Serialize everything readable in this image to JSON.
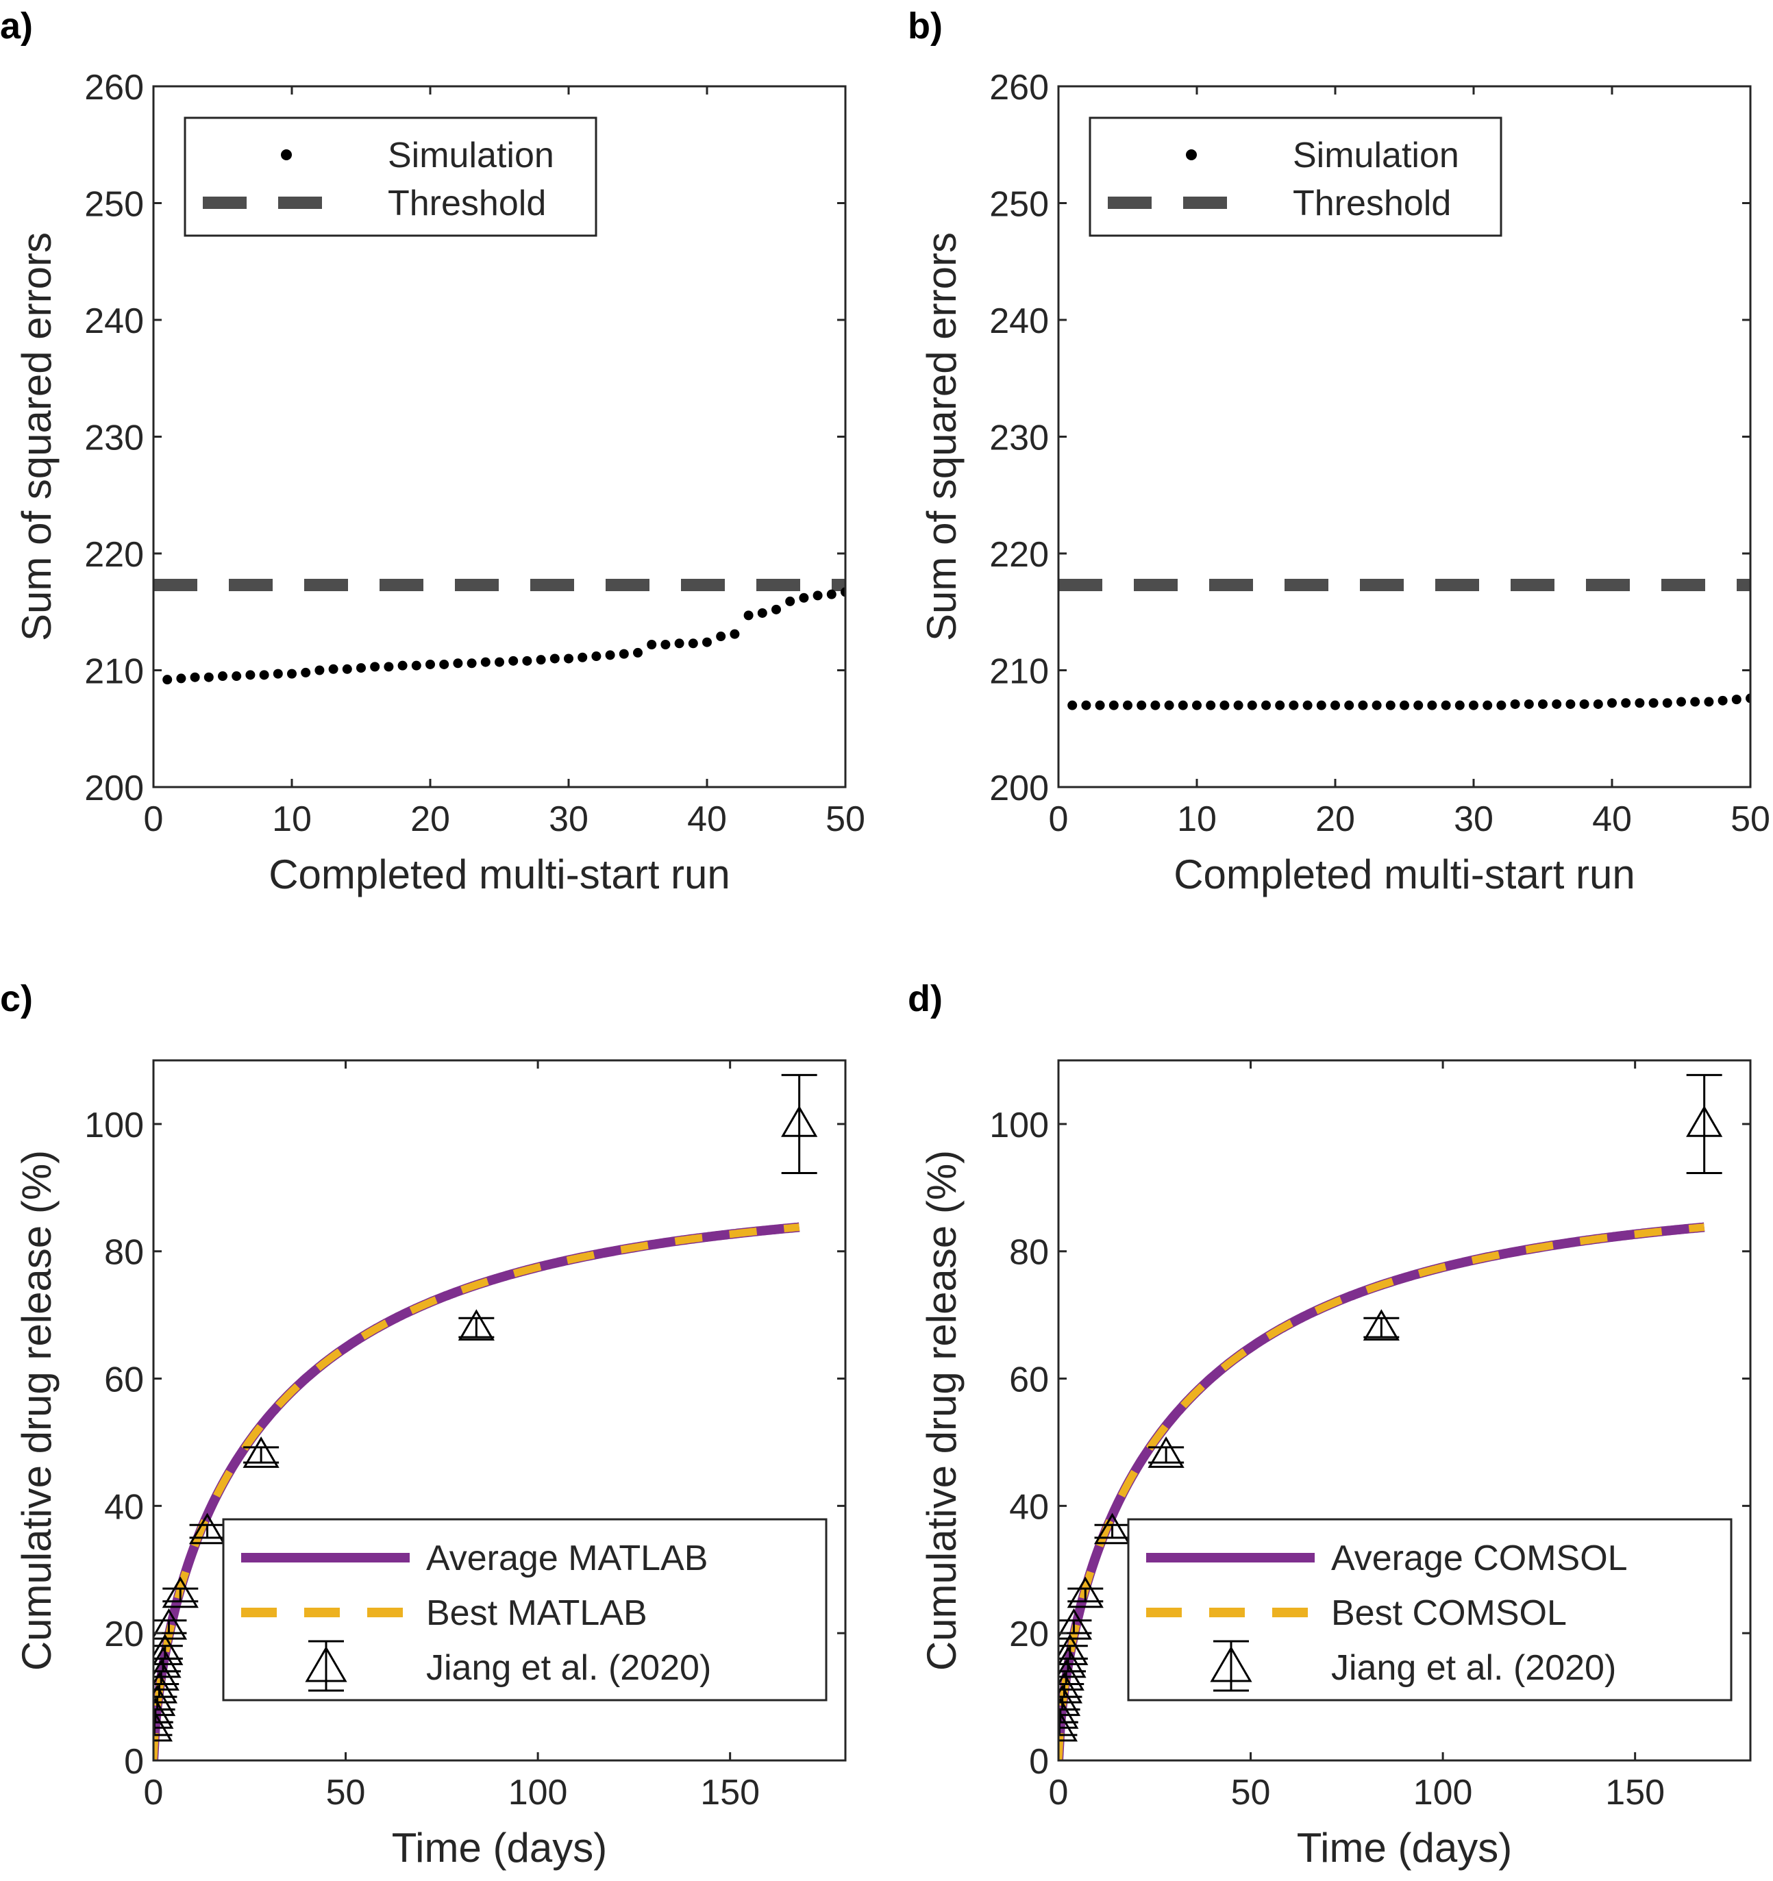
{
  "chart_data": [
    {
      "panel": "a)",
      "type": "scatter",
      "xlabel": "Completed multi-start run",
      "ylabel": "Sum of squared errors",
      "xlim": [
        0,
        50
      ],
      "ylim": [
        200,
        260
      ],
      "xticks": [
        0,
        10,
        20,
        30,
        40,
        50
      ],
      "yticks": [
        200,
        210,
        220,
        230,
        240,
        250,
        260
      ],
      "legend": {
        "placement": "top-left",
        "entries": [
          "Simulation",
          "Threshold"
        ]
      },
      "series": [
        {
          "name": "Simulation",
          "style": "dots",
          "color": "#000000",
          "x": [
            1,
            2,
            3,
            4,
            5,
            6,
            7,
            8,
            9,
            10,
            11,
            12,
            13,
            14,
            15,
            16,
            17,
            18,
            19,
            20,
            21,
            22,
            23,
            24,
            25,
            26,
            27,
            28,
            29,
            30,
            31,
            32,
            33,
            34,
            35,
            36,
            37,
            38,
            39,
            40,
            41,
            42,
            43,
            44,
            45,
            46,
            47,
            48,
            49,
            50
          ],
          "y": [
            209.2,
            209.3,
            209.4,
            209.4,
            209.5,
            209.5,
            209.6,
            209.6,
            209.7,
            209.7,
            209.8,
            210.0,
            210.1,
            210.1,
            210.2,
            210.3,
            210.3,
            210.4,
            210.4,
            210.5,
            210.5,
            210.6,
            210.6,
            210.7,
            210.7,
            210.8,
            210.8,
            210.9,
            211.0,
            211.0,
            211.1,
            211.2,
            211.3,
            211.4,
            211.5,
            212.2,
            212.2,
            212.3,
            212.3,
            212.4,
            212.9,
            213.1,
            214.7,
            214.9,
            215.2,
            215.9,
            216.2,
            216.4,
            216.5,
            216.7
          ]
        },
        {
          "name": "Threshold",
          "style": "dashed",
          "color": "#4d4d4d",
          "y": 217.3
        }
      ]
    },
    {
      "panel": "b)",
      "type": "scatter",
      "xlabel": "Completed multi-start run",
      "ylabel": "Sum of squared errors",
      "xlim": [
        0,
        50
      ],
      "ylim": [
        200,
        260
      ],
      "xticks": [
        0,
        10,
        20,
        30,
        40,
        50
      ],
      "yticks": [
        200,
        210,
        220,
        230,
        240,
        250,
        260
      ],
      "legend": {
        "placement": "top-left",
        "entries": [
          "Simulation",
          "Threshold"
        ]
      },
      "series": [
        {
          "name": "Simulation",
          "style": "dots",
          "color": "#000000",
          "x": [
            1,
            2,
            3,
            4,
            5,
            6,
            7,
            8,
            9,
            10,
            11,
            12,
            13,
            14,
            15,
            16,
            17,
            18,
            19,
            20,
            21,
            22,
            23,
            24,
            25,
            26,
            27,
            28,
            29,
            30,
            31,
            32,
            33,
            34,
            35,
            36,
            37,
            38,
            39,
            40,
            41,
            42,
            43,
            44,
            45,
            46,
            47,
            48,
            49,
            50
          ],
          "y": [
            207.0,
            207.0,
            207.0,
            207.0,
            207.0,
            207.0,
            207.0,
            207.0,
            207.0,
            207.0,
            207.0,
            207.0,
            207.0,
            207.0,
            207.0,
            207.0,
            207.0,
            207.0,
            207.0,
            207.0,
            207.0,
            207.0,
            207.0,
            207.0,
            207.0,
            207.0,
            207.0,
            207.0,
            207.0,
            207.0,
            207.0,
            207.0,
            207.1,
            207.1,
            207.1,
            207.1,
            207.1,
            207.1,
            207.1,
            207.2,
            207.2,
            207.2,
            207.2,
            207.2,
            207.3,
            207.3,
            207.3,
            207.4,
            207.5,
            207.6
          ]
        },
        {
          "name": "Threshold",
          "style": "dashed",
          "color": "#4d4d4d",
          "y": 217.3
        }
      ]
    },
    {
      "panel": "c)",
      "type": "line",
      "xlabel": "Time (days)",
      "ylabel": "Cumulative drug release (%)",
      "xlim": [
        0,
        180
      ],
      "ylim": [
        0,
        110
      ],
      "xticks": [
        0,
        50,
        100,
        150
      ],
      "yticks": [
        0,
        20,
        40,
        60,
        80,
        100
      ],
      "legend": {
        "placement": "bottom-right",
        "entries": [
          "Average MATLAB",
          "Best MATLAB",
          "Jiang et al. (2020)"
        ]
      },
      "series": [
        {
          "name": "Average MATLAB",
          "style": "solid",
          "color": "#7e2f8e"
        },
        {
          "name": "Best MATLAB",
          "style": "dashed",
          "color": "#edb120"
        },
        {
          "name": "Jiang et al. (2020)",
          "style": "triangle-errorbar",
          "color": "#000000",
          "x": [
            0.25,
            0.5,
            1,
            1.5,
            2,
            2.5,
            3,
            4,
            7,
            14,
            28,
            84,
            168
          ],
          "y": [
            5,
            7,
            9,
            11,
            13,
            15,
            17,
            21,
            26,
            36,
            48,
            68,
            100
          ],
          "err": [
            1.0,
            1.0,
            1.0,
            1.0,
            1.0,
            1.0,
            1.0,
            1.0,
            1.0,
            1.0,
            1.2,
            1.5,
            7.7
          ]
        }
      ]
    },
    {
      "panel": "d)",
      "type": "line",
      "xlabel": "Time (days)",
      "ylabel": "Cumulative drug release (%)",
      "xlim": [
        0,
        180
      ],
      "ylim": [
        0,
        110
      ],
      "xticks": [
        0,
        50,
        100,
        150
      ],
      "yticks": [
        0,
        20,
        40,
        60,
        80,
        100
      ],
      "legend": {
        "placement": "bottom-right",
        "entries": [
          "Average COMSOL",
          "Best COMSOL",
          "Jiang et al. (2020)"
        ]
      },
      "series": [
        {
          "name": "Average COMSOL",
          "style": "solid",
          "color": "#7e2f8e"
        },
        {
          "name": "Best COMSOL",
          "style": "dashed",
          "color": "#edb120"
        },
        {
          "name": "Jiang et al. (2020)",
          "style": "triangle-errorbar",
          "color": "#000000",
          "x": [
            0.25,
            0.5,
            1,
            1.5,
            2,
            2.5,
            3,
            4,
            7,
            14,
            28,
            84,
            168
          ],
          "y": [
            5,
            7,
            9,
            11,
            13,
            15,
            17,
            21,
            26,
            36,
            48,
            68,
            100
          ],
          "err": [
            1.0,
            1.0,
            1.0,
            1.0,
            1.0,
            1.0,
            1.0,
            1.0,
            1.0,
            1.0,
            1.2,
            1.5,
            7.7
          ]
        }
      ]
    }
  ]
}
